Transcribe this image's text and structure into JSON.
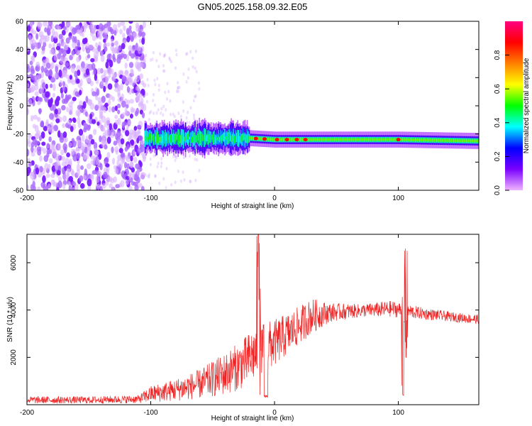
{
  "title": "GN05.2025.158.09.32.E05",
  "chart_data": [
    {
      "type": "heatmap",
      "title": "GN05.2025.158.09.32.E05",
      "xlabel": "Height of straight line (km)",
      "ylabel": "Frequency (Hz)",
      "xlim": [
        -200,
        165
      ],
      "ylim": [
        -60,
        60
      ],
      "x_ticks": [
        "-200",
        "-100",
        "0",
        "100"
      ],
      "y_ticks": [
        "60",
        "40",
        "20",
        "0",
        "-20",
        "-40",
        "-60"
      ],
      "colorbar": {
        "label": "Normalized spectral amplitude",
        "range": [
          0.0,
          1.0
        ],
        "ticks": [
          "0.0",
          "0.2",
          "0.4",
          "0.6",
          "0.8"
        ],
        "colormap": [
          "#f0b4ff",
          "#7a00ff",
          "#0000ff",
          "#00ffff",
          "#00ff00",
          "#ffff00",
          "#ff8000",
          "#ff0000",
          "#ff0080"
        ]
      },
      "features": {
        "noise_region_x": [
          -200,
          -105
        ],
        "band_center_hz": [
          {
            "x": -105,
            "y": -23
          },
          {
            "x": -60,
            "y": -23
          },
          {
            "x": -20,
            "y": -23
          },
          {
            "x": 0,
            "y": -24
          },
          {
            "x": 50,
            "y": -24
          },
          {
            "x": 100,
            "y": -24
          },
          {
            "x": 165,
            "y": -25
          }
        ],
        "hot_spots_x": [
          -15,
          -8,
          2,
          10,
          18,
          25,
          100
        ]
      }
    },
    {
      "type": "line",
      "xlabel": "Height of straight line (km)",
      "ylabel": "SNR (10 * v/v)",
      "xlim": [
        -200,
        165
      ],
      "ylim": [
        0,
        7200
      ],
      "x_ticks": [
        "-200",
        "-100",
        "0",
        "100"
      ],
      "y_ticks": [
        "6000",
        "4000",
        "2000"
      ],
      "color": "#ee2222",
      "envelope": [
        {
          "x": -200,
          "low": 50,
          "high": 350
        },
        {
          "x": -150,
          "low": 50,
          "high": 350
        },
        {
          "x": -110,
          "low": 60,
          "high": 400
        },
        {
          "x": -100,
          "low": 100,
          "high": 800
        },
        {
          "x": -80,
          "low": 150,
          "high": 1100
        },
        {
          "x": -60,
          "low": 250,
          "high": 1500
        },
        {
          "x": -40,
          "low": 400,
          "high": 2200
        },
        {
          "x": -25,
          "low": 700,
          "high": 2800
        },
        {
          "x": -15,
          "low": 1000,
          "high": 3400
        },
        {
          "x": 0,
          "low": 1600,
          "high": 3600
        },
        {
          "x": 15,
          "low": 2300,
          "high": 4000
        },
        {
          "x": 30,
          "low": 3000,
          "high": 4500
        },
        {
          "x": 45,
          "low": 3500,
          "high": 4300
        },
        {
          "x": 70,
          "low": 3700,
          "high": 4250
        },
        {
          "x": 95,
          "low": 3700,
          "high": 4400
        },
        {
          "x": 120,
          "low": 3600,
          "high": 4100
        },
        {
          "x": 145,
          "low": 3500,
          "high": 3900
        },
        {
          "x": 165,
          "low": 3400,
          "high": 3800
        }
      ],
      "spikes": [
        {
          "x": -13,
          "high": 7200,
          "low": 400
        },
        {
          "x": -7,
          "high": 400,
          "low": 300
        },
        {
          "x": 104,
          "high": 6700,
          "low": 400
        },
        {
          "x": 106,
          "high": 6600,
          "low": 2000
        }
      ]
    }
  ]
}
